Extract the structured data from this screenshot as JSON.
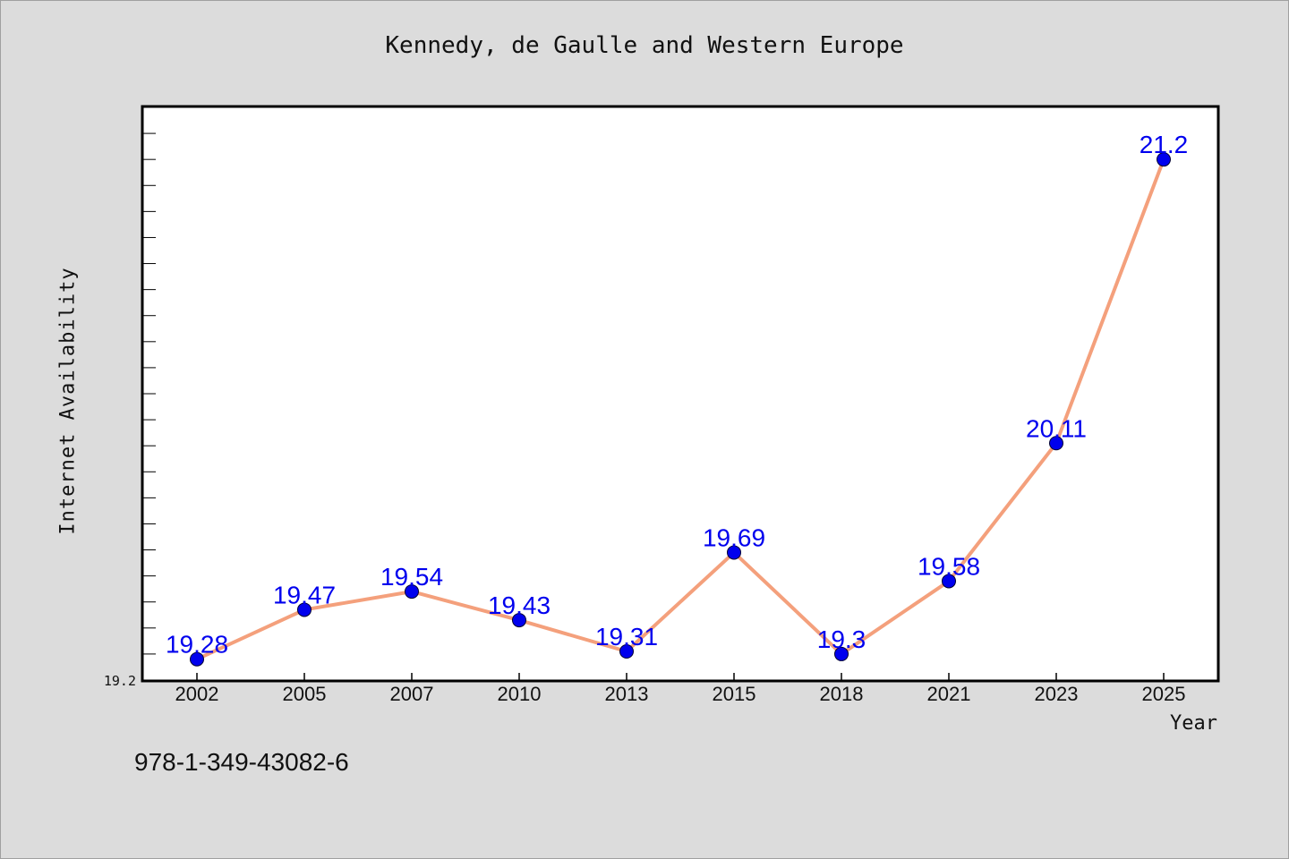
{
  "chart_data": {
    "type": "line",
    "title": "Kennedy, de Gaulle and Western Europe",
    "xlabel": "Year",
    "ylabel": "Internet Availability",
    "categories": [
      "2002",
      "2005",
      "2007",
      "2010",
      "2013",
      "2015",
      "2018",
      "2021",
      "2023",
      "2025"
    ],
    "series": [
      {
        "values": [
          19.28,
          19.47,
          19.54,
          19.43,
          19.31,
          19.69,
          19.3,
          19.58,
          20.11,
          21.2
        ],
        "data_labels": [
          "19.28",
          "19.47",
          "19.54",
          "19.43",
          "19.31",
          "19.69",
          "19.3",
          "19.58",
          "20.11",
          "21.2"
        ]
      }
    ],
    "y_tick_label": "19.2",
    "ylim": [
      19.2,
      21.4
    ],
    "grid": false,
    "line_color": "#f4a07c",
    "marker_color": "#0000ee",
    "label_color": "#0000ee"
  },
  "footnote": "978-1-349-43082-6"
}
